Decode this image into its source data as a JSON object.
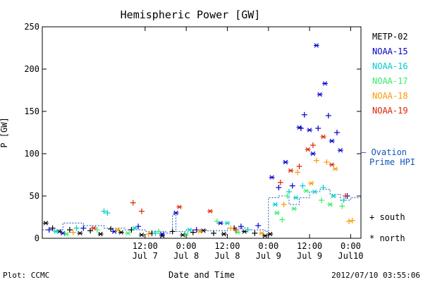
{
  "chart_data": {
    "type": "scatter",
    "title": "Hemispheric Power [GW]",
    "ylabel": "P [GW]",
    "xlabel": "Date and Time",
    "ylim": [
      0,
      250
    ],
    "yticks": [
      0,
      50,
      100,
      150,
      200,
      250
    ],
    "xlim": [
      "2012-07-06 06:00",
      "2012-07-10 03:00"
    ],
    "xticks": [
      {
        "t": "2012-07-07 12:00",
        "top": "12:00",
        "bottom": "Jul 7"
      },
      {
        "t": "2012-07-08 00:00",
        "top": "0:00",
        "bottom": "Jul 8"
      },
      {
        "t": "2012-07-08 12:00",
        "top": "12:00",
        "bottom": "Jul 8"
      },
      {
        "t": "2012-07-09 00:00",
        "top": "0:00",
        "bottom": "Jul 9"
      },
      {
        "t": "2012-07-09 12:00",
        "top": "12:00",
        "bottom": "Jul 9"
      },
      {
        "t": "2012-07-10 00:00",
        "top": "0:00",
        "bottom": "Jul10"
      }
    ],
    "series": [
      {
        "name": "METP-02",
        "color": "#000000",
        "points": [
          {
            "t": "2012-07-06 07:00",
            "v": 18,
            "m": "north"
          },
          {
            "t": "2012-07-06 09:00",
            "v": 12,
            "m": "south"
          },
          {
            "t": "2012-07-06 11:00",
            "v": 8,
            "m": "north"
          },
          {
            "t": "2012-07-06 14:00",
            "v": 10,
            "m": "south"
          },
          {
            "t": "2012-07-06 17:00",
            "v": 6,
            "m": "north"
          },
          {
            "t": "2012-07-06 20:00",
            "v": 9,
            "m": "south"
          },
          {
            "t": "2012-07-06 23:00",
            "v": 5,
            "m": "north"
          },
          {
            "t": "2012-07-07 02:00",
            "v": 11,
            "m": "south"
          },
          {
            "t": "2012-07-07 05:00",
            "v": 7,
            "m": "north"
          },
          {
            "t": "2012-07-07 08:00",
            "v": 10,
            "m": "south"
          },
          {
            "t": "2012-07-07 11:00",
            "v": 4,
            "m": "north"
          },
          {
            "t": "2012-07-07 14:00",
            "v": 6,
            "m": "south"
          },
          {
            "t": "2012-07-07 17:00",
            "v": 3,
            "m": "north"
          },
          {
            "t": "2012-07-07 20:00",
            "v": 8,
            "m": "south"
          },
          {
            "t": "2012-07-07 23:00",
            "v": 4,
            "m": "north"
          },
          {
            "t": "2012-07-08 02:00",
            "v": 7,
            "m": "south"
          },
          {
            "t": "2012-07-08 05:00",
            "v": 9,
            "m": "north"
          },
          {
            "t": "2012-07-08 08:00",
            "v": 6,
            "m": "south"
          },
          {
            "t": "2012-07-08 11:00",
            "v": 5,
            "m": "north"
          },
          {
            "t": "2012-07-08 14:00",
            "v": 12,
            "m": "south"
          },
          {
            "t": "2012-07-08 17:00",
            "v": 8,
            "m": "north"
          },
          {
            "t": "2012-07-08 20:00",
            "v": 6,
            "m": "south"
          },
          {
            "t": "2012-07-08 23:00",
            "v": 3,
            "m": "north"
          },
          {
            "t": "2012-07-09 00:30",
            "v": 5,
            "m": "north"
          }
        ]
      },
      {
        "name": "NOAA-15",
        "color": "#0000cc",
        "points": [
          {
            "t": "2012-07-06 08:00",
            "v": 10,
            "m": "south"
          },
          {
            "t": "2012-07-06 12:00",
            "v": 6,
            "m": "north"
          },
          {
            "t": "2012-07-06 18:00",
            "v": 12,
            "m": "south"
          },
          {
            "t": "2012-07-07 03:00",
            "v": 8,
            "m": "north"
          },
          {
            "t": "2012-07-07 10:00",
            "v": 14,
            "m": "south"
          },
          {
            "t": "2012-07-07 17:00",
            "v": 5,
            "m": "north"
          },
          {
            "t": "2012-07-07 21:00",
            "v": 30,
            "m": "north"
          },
          {
            "t": "2012-07-08 03:00",
            "v": 10,
            "m": "south"
          },
          {
            "t": "2012-07-08 10:00",
            "v": 18,
            "m": "north"
          },
          {
            "t": "2012-07-08 16:00",
            "v": 14,
            "m": "south"
          },
          {
            "t": "2012-07-08 21:00",
            "v": 15,
            "m": "south"
          },
          {
            "t": "2012-07-09 01:00",
            "v": 72,
            "m": "north"
          },
          {
            "t": "2012-07-09 03:00",
            "v": 60,
            "m": "south"
          },
          {
            "t": "2012-07-09 05:00",
            "v": 90,
            "m": "north"
          },
          {
            "t": "2012-07-09 07:00",
            "v": 62,
            "m": "south"
          },
          {
            "t": "2012-07-09 09:00",
            "v": 131,
            "m": "north"
          },
          {
            "t": "2012-07-09 09:30",
            "v": 130,
            "m": "south"
          },
          {
            "t": "2012-07-09 10:30",
            "v": 146,
            "m": "south"
          },
          {
            "t": "2012-07-09 12:00",
            "v": 128,
            "m": "north"
          },
          {
            "t": "2012-07-09 13:00",
            "v": 100,
            "m": "north"
          },
          {
            "t": "2012-07-09 14:00",
            "v": 228,
            "m": "north"
          },
          {
            "t": "2012-07-09 14:30",
            "v": 130,
            "m": "south"
          },
          {
            "t": "2012-07-09 15:00",
            "v": 170,
            "m": "north"
          },
          {
            "t": "2012-07-09 16:30",
            "v": 183,
            "m": "north"
          },
          {
            "t": "2012-07-09 17:30",
            "v": 145,
            "m": "south"
          },
          {
            "t": "2012-07-09 18:30",
            "v": 115,
            "m": "north"
          },
          {
            "t": "2012-07-09 20:00",
            "v": 125,
            "m": "south"
          },
          {
            "t": "2012-07-09 21:00",
            "v": 104,
            "m": "north"
          },
          {
            "t": "2012-07-09 23:00",
            "v": 50,
            "m": "south"
          }
        ]
      },
      {
        "name": "NOAA-16",
        "color": "#00cccc",
        "points": [
          {
            "t": "2012-07-06 10:00",
            "v": 8,
            "m": "north"
          },
          {
            "t": "2012-07-06 16:00",
            "v": 12,
            "m": "south"
          },
          {
            "t": "2012-07-07 00:00",
            "v": 32,
            "m": "south"
          },
          {
            "t": "2012-07-07 01:00",
            "v": 30,
            "m": "south"
          },
          {
            "t": "2012-07-07 09:00",
            "v": 12,
            "m": "north"
          },
          {
            "t": "2012-07-07 15:00",
            "v": 6,
            "m": "south"
          },
          {
            "t": "2012-07-08 01:00",
            "v": 10,
            "m": "north"
          },
          {
            "t": "2012-07-08 12:00",
            "v": 18,
            "m": "north"
          },
          {
            "t": "2012-07-08 18:00",
            "v": 10,
            "m": "south"
          },
          {
            "t": "2012-07-09 02:00",
            "v": 40,
            "m": "north"
          },
          {
            "t": "2012-07-09 06:00",
            "v": 55,
            "m": "south"
          },
          {
            "t": "2012-07-09 08:00",
            "v": 48,
            "m": "north"
          },
          {
            "t": "2012-07-09 10:00",
            "v": 62,
            "m": "south"
          },
          {
            "t": "2012-07-09 13:30",
            "v": 55,
            "m": "north"
          },
          {
            "t": "2012-07-09 16:00",
            "v": 60,
            "m": "south"
          },
          {
            "t": "2012-07-09 19:00",
            "v": 50,
            "m": "north"
          },
          {
            "t": "2012-07-09 22:00",
            "v": 45,
            "m": "south"
          }
        ]
      },
      {
        "name": "NOAA-17",
        "color": "#33ee66",
        "points": [
          {
            "t": "2012-07-06 13:00",
            "v": 5,
            "m": "north"
          },
          {
            "t": "2012-07-06 22:00",
            "v": 10,
            "m": "south"
          },
          {
            "t": "2012-07-07 07:00",
            "v": 6,
            "m": "north"
          },
          {
            "t": "2012-07-07 16:00",
            "v": 8,
            "m": "south"
          },
          {
            "t": "2012-07-08 00:00",
            "v": 5,
            "m": "north"
          },
          {
            "t": "2012-07-08 09:00",
            "v": 20,
            "m": "south"
          },
          {
            "t": "2012-07-08 15:00",
            "v": 7,
            "m": "north"
          },
          {
            "t": "2012-07-09 02:30",
            "v": 30,
            "m": "north"
          },
          {
            "t": "2012-07-09 04:00",
            "v": 22,
            "m": "south"
          },
          {
            "t": "2012-07-09 05:30",
            "v": 50,
            "m": "south"
          },
          {
            "t": "2012-07-09 07:30",
            "v": 35,
            "m": "north"
          },
          {
            "t": "2012-07-09 11:00",
            "v": 56,
            "m": "north"
          },
          {
            "t": "2012-07-09 15:30",
            "v": 45,
            "m": "south"
          },
          {
            "t": "2012-07-09 18:00",
            "v": 40,
            "m": "north"
          },
          {
            "t": "2012-07-09 21:30",
            "v": 38,
            "m": "south"
          }
        ]
      },
      {
        "name": "NOAA-18",
        "color": "#ff9900",
        "points": [
          {
            "t": "2012-07-06 15:00",
            "v": 7,
            "m": "south"
          },
          {
            "t": "2012-07-07 04:00",
            "v": 10,
            "m": "north"
          },
          {
            "t": "2012-07-07 13:00",
            "v": 5,
            "m": "south"
          },
          {
            "t": "2012-07-08 04:00",
            "v": 8,
            "m": "north"
          },
          {
            "t": "2012-07-08 13:00",
            "v": 12,
            "m": "south"
          },
          {
            "t": "2012-07-08 22:00",
            "v": 6,
            "m": "north"
          },
          {
            "t": "2012-07-09 04:30",
            "v": 40,
            "m": "south"
          },
          {
            "t": "2012-07-09 08:30",
            "v": 78,
            "m": "south"
          },
          {
            "t": "2012-07-09 12:30",
            "v": 65,
            "m": "north"
          },
          {
            "t": "2012-07-09 14:00",
            "v": 92,
            "m": "south"
          },
          {
            "t": "2012-07-09 17:00",
            "v": 90,
            "m": "south"
          },
          {
            "t": "2012-07-09 19:30",
            "v": 82,
            "m": "north"
          },
          {
            "t": "2012-07-09 23:30",
            "v": 20,
            "m": "south"
          },
          {
            "t": "2012-07-10 00:30",
            "v": 21,
            "m": "south"
          }
        ]
      },
      {
        "name": "NOAA-19",
        "color": "#dd2200",
        "points": [
          {
            "t": "2012-07-06 21:00",
            "v": 12,
            "m": "north"
          },
          {
            "t": "2012-07-07 08:30",
            "v": 42,
            "m": "south"
          },
          {
            "t": "2012-07-07 11:00",
            "v": 32,
            "m": "south"
          },
          {
            "t": "2012-07-07 22:00",
            "v": 37,
            "m": "north"
          },
          {
            "t": "2012-07-08 07:00",
            "v": 32,
            "m": "north"
          },
          {
            "t": "2012-07-08 14:30",
            "v": 10,
            "m": "south"
          },
          {
            "t": "2012-07-09 03:30",
            "v": 66,
            "m": "south"
          },
          {
            "t": "2012-07-09 06:30",
            "v": 80,
            "m": "north"
          },
          {
            "t": "2012-07-09 09:00",
            "v": 85,
            "m": "south"
          },
          {
            "t": "2012-07-09 11:30",
            "v": 105,
            "m": "north"
          },
          {
            "t": "2012-07-09 13:00",
            "v": 110,
            "m": "south"
          },
          {
            "t": "2012-07-09 16:00",
            "v": 120,
            "m": "north"
          },
          {
            "t": "2012-07-09 18:30",
            "v": 87,
            "m": "north"
          },
          {
            "t": "2012-07-09 22:30",
            "v": 50,
            "m": "south"
          }
        ]
      }
    ],
    "ovation": {
      "name": "Ovation Prime HPI",
      "legend_line1": "— Ovation",
      "legend_line2": "Prime HPI",
      "color": "#1155bb",
      "points": [
        {
          "t": "2012-07-06 06:00",
          "v": 10
        },
        {
          "t": "2012-07-06 12:00",
          "v": 18
        },
        {
          "t": "2012-07-06 18:00",
          "v": 15
        },
        {
          "t": "2012-07-07 00:00",
          "v": 12
        },
        {
          "t": "2012-07-07 06:00",
          "v": 10
        },
        {
          "t": "2012-07-07 12:00",
          "v": 8
        },
        {
          "t": "2012-07-07 18:00",
          "v": 6
        },
        {
          "t": "2012-07-07 20:00",
          "v": 28
        },
        {
          "t": "2012-07-07 21:00",
          "v": 8
        },
        {
          "t": "2012-07-08 00:00",
          "v": 10
        },
        {
          "t": "2012-07-08 06:00",
          "v": 9
        },
        {
          "t": "2012-07-08 12:00",
          "v": 12
        },
        {
          "t": "2012-07-08 18:00",
          "v": 10
        },
        {
          "t": "2012-07-08 23:00",
          "v": 8
        },
        {
          "t": "2012-07-09 00:00",
          "v": 48
        },
        {
          "t": "2012-07-09 03:00",
          "v": 50
        },
        {
          "t": "2012-07-09 06:00",
          "v": 40
        },
        {
          "t": "2012-07-09 09:00",
          "v": 48
        },
        {
          "t": "2012-07-09 12:00",
          "v": 55
        },
        {
          "t": "2012-07-09 15:00",
          "v": 58
        },
        {
          "t": "2012-07-09 18:00",
          "v": 52
        },
        {
          "t": "2012-07-09 21:00",
          "v": 45
        },
        {
          "t": "2012-07-10 00:00",
          "v": 48
        },
        {
          "t": "2012-07-10 03:00",
          "v": 50
        }
      ]
    },
    "markers_legend": {
      "south": "+ south",
      "north": "* north"
    }
  },
  "footer": {
    "left": "Plot: CCMC",
    "right": "2012/07/10 03:55:06"
  }
}
